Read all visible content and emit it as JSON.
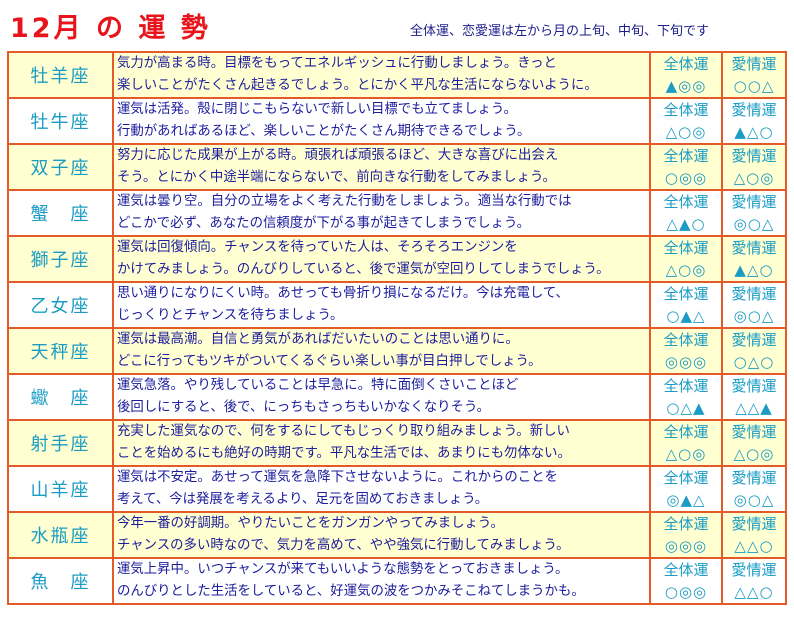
{
  "header": {
    "title": "12月 の 運 勢",
    "subtitle": "全体運、恋愛運は左から月の上旬、中旬、下旬です"
  },
  "labels": {
    "overall": "全体運",
    "love": "愛情運"
  },
  "colors": {
    "title": "#e8141c",
    "border": "#e45a28",
    "sign": "#1a9cc4",
    "text": "#1c1c9c",
    "row_highlight": "#ffffd2"
  },
  "rows": [
    {
      "sign": "牡羊座",
      "line1": "気力が高まる時。目標をもってエネルギッシュに行動しましょう。きっと",
      "line2": "楽しいことがたくさん起きるでしょう。とにかく平凡な生活にならないように。",
      "overall": "▲◎◎",
      "love": "○○△"
    },
    {
      "sign": "牡牛座",
      "line1": "運気は活発。殻に閉じこもらないで新しい目標でも立てましょう。",
      "line2": "行動があればあるほど、楽しいことがたくさん期待できるでしょう。",
      "overall": "△○◎",
      "love": "▲△○"
    },
    {
      "sign": "双子座",
      "line1": "努力に応じた成果が上がる時。頑張れば頑張るほど、大きな喜びに出会え",
      "line2": "そう。とにかく中途半端にならないで、前向きな行動をしてみましょう。",
      "overall": "○◎◎",
      "love": "△○◎"
    },
    {
      "sign": "蟹　座",
      "line1": "運気は曇り空。自分の立場をよく考えた行動をしましょう。適当な行動では",
      "line2": "どこかで必ず、あなたの信頼度が下がる事が起きてしまうでしょう。",
      "overall": "△▲○",
      "love": "◎○△"
    },
    {
      "sign": "獅子座",
      "line1": "運気は回復傾向。チャンスを待っていた人は、そろそろエンジンを",
      "line2": "かけてみましょう。のんびりしていると、後で運気が空回りしてしまうでしょう。",
      "overall": "△○◎",
      "love": "▲△○"
    },
    {
      "sign": "乙女座",
      "line1": "思い通りになりにくい時。あせっても骨折り損になるだけ。今は充電して、",
      "line2": "じっくりとチャンスを待ちましょう。",
      "overall": "○▲△",
      "love": "◎○△"
    },
    {
      "sign": "天秤座",
      "line1": "運気は最高潮。自信と勇気があればだいたいのことは思い通りに。",
      "line2": "どこに行ってもツキがついてくるぐらい楽しい事が目白押しでしょう。",
      "overall": "◎◎◎",
      "love": "○△○"
    },
    {
      "sign": "蠍　座",
      "line1": "運気急落。やり残していることは早急に。特に面倒くさいことほど",
      "line2": "後回しにすると、後で、にっちもさっちもいかなくなりそう。",
      "overall": "○△▲",
      "love": "△△▲"
    },
    {
      "sign": "射手座",
      "line1": "充実した運気なので、何をするにしてもじっくり取り組みましょう。新しい",
      "line2": "ことを始めるにも絶好の時期です。平凡な生活では、あまりにも勿体ない。",
      "overall": "△○◎",
      "love": "△○◎"
    },
    {
      "sign": "山羊座",
      "line1": "運気は不安定。あせって運気を急降下させないように。これからのことを",
      "line2": "考えて、今は発展を考えるより、足元を固めておきましょう。",
      "overall": "◎▲△",
      "love": "◎○△"
    },
    {
      "sign": "水瓶座",
      "line1": "今年一番の好調期。やりたいことをガンガンやってみましょう。",
      "line2": "チャンスの多い時なので、気力を高めて、やや強気に行動してみましょう。",
      "overall": "◎◎◎",
      "love": "△△○"
    },
    {
      "sign": "魚　座",
      "line1": "運気上昇中。いつチャンスが来てもいいような態勢をとっておきましょう。",
      "line2": "のんびりとした生活をしていると、好運気の波をつかみそこねてしまうかも。",
      "overall": "○◎◎",
      "love": "△△○"
    }
  ]
}
